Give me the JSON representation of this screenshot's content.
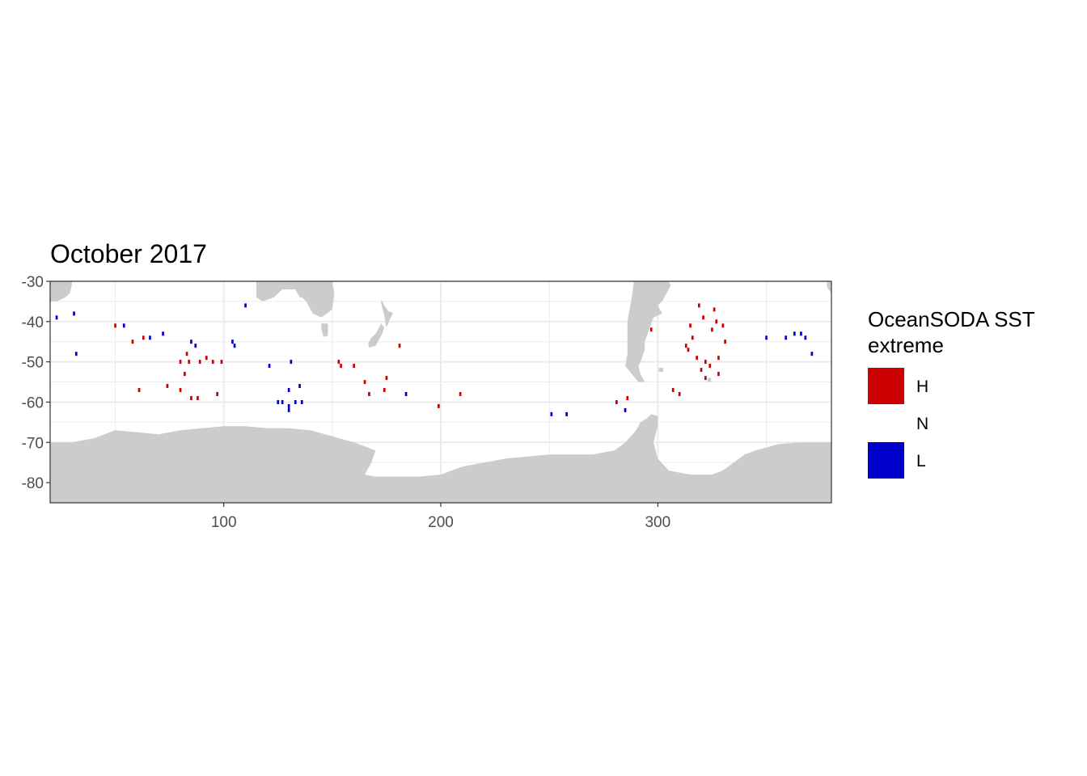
{
  "chart_data": {
    "type": "heatmap",
    "title": "October 2017",
    "xlabel": "",
    "ylabel": "",
    "xlim": [
      20,
      380
    ],
    "ylim": [
      -85,
      -30
    ],
    "x_ticks": [
      100,
      200,
      300
    ],
    "x_tick_labels": [
      "100",
      "200",
      "300"
    ],
    "y_ticks": [
      -30,
      -40,
      -50,
      -60,
      -70,
      -80
    ],
    "y_tick_labels": [
      "-30",
      "-40",
      "-50",
      "-60",
      "-70",
      "-80"
    ],
    "grid": true,
    "legend": {
      "title_lines": [
        "OceanSODA SST",
        "extreme"
      ],
      "placement": "right",
      "entries": [
        {
          "key": "H",
          "label": "H",
          "color": "#cc0000"
        },
        {
          "key": "N",
          "label": "N",
          "color": "#ffffff"
        },
        {
          "key": "L",
          "label": "L",
          "color": "#0000cc"
        }
      ]
    },
    "colors": {
      "land": "#cccccc",
      "panel": "#ffffff",
      "grid": "#ebebeb",
      "border": "#333333"
    },
    "cells": [
      {
        "lon": 23,
        "lat": -39,
        "cat": "L"
      },
      {
        "lon": 31,
        "lat": -38,
        "cat": "L"
      },
      {
        "lon": 32,
        "lat": -48,
        "cat": "L"
      },
      {
        "lon": 50,
        "lat": -41,
        "cat": "H"
      },
      {
        "lon": 54,
        "lat": -41,
        "cat": "L"
      },
      {
        "lon": 58,
        "lat": -45,
        "cat": "H"
      },
      {
        "lon": 63,
        "lat": -44,
        "cat": "H"
      },
      {
        "lon": 66,
        "lat": -44,
        "cat": "L"
      },
      {
        "lon": 72,
        "lat": -43,
        "cat": "L"
      },
      {
        "lon": 80,
        "lat": -50,
        "cat": "H"
      },
      {
        "lon": 83,
        "lat": -48,
        "cat": "H"
      },
      {
        "lon": 84,
        "lat": -50,
        "cat": "H"
      },
      {
        "lon": 85,
        "lat": -45,
        "cat": "L"
      },
      {
        "lon": 87,
        "lat": -46,
        "cat": "L"
      },
      {
        "lon": 89,
        "lat": -50,
        "cat": "H"
      },
      {
        "lon": 92,
        "lat": -49,
        "cat": "H"
      },
      {
        "lon": 95,
        "lat": -50,
        "cat": "H"
      },
      {
        "lon": 99,
        "lat": -50,
        "cat": "H"
      },
      {
        "lon": 82,
        "lat": -53,
        "cat": "H"
      },
      {
        "lon": 74,
        "lat": -56,
        "cat": "H"
      },
      {
        "lon": 61,
        "lat": -57,
        "cat": "H"
      },
      {
        "lon": 80,
        "lat": -57,
        "cat": "H"
      },
      {
        "lon": 85,
        "lat": -59,
        "cat": "H"
      },
      {
        "lon": 88,
        "lat": -59,
        "cat": "H"
      },
      {
        "lon": 97,
        "lat": -58,
        "cat": "H"
      },
      {
        "lon": 104,
        "lat": -45,
        "cat": "L"
      },
      {
        "lon": 105,
        "lat": -46,
        "cat": "L"
      },
      {
        "lon": 110,
        "lat": -36,
        "cat": "L"
      },
      {
        "lon": 121,
        "lat": -51,
        "cat": "L"
      },
      {
        "lon": 131,
        "lat": -50,
        "cat": "L"
      },
      {
        "lon": 125,
        "lat": -60,
        "cat": "L"
      },
      {
        "lon": 127,
        "lat": -60,
        "cat": "L"
      },
      {
        "lon": 130,
        "lat": -61,
        "cat": "L"
      },
      {
        "lon": 133,
        "lat": -60,
        "cat": "L"
      },
      {
        "lon": 136,
        "lat": -60,
        "cat": "L"
      },
      {
        "lon": 130,
        "lat": -57,
        "cat": "L"
      },
      {
        "lon": 135,
        "lat": -56,
        "cat": "L"
      },
      {
        "lon": 130,
        "lat": -62,
        "cat": "L"
      },
      {
        "lon": 153,
        "lat": -50,
        "cat": "H"
      },
      {
        "lon": 154,
        "lat": -51,
        "cat": "H"
      },
      {
        "lon": 160,
        "lat": -51,
        "cat": "H"
      },
      {
        "lon": 165,
        "lat": -55,
        "cat": "H"
      },
      {
        "lon": 167,
        "lat": -58,
        "cat": "H"
      },
      {
        "lon": 175,
        "lat": -54,
        "cat": "H"
      },
      {
        "lon": 174,
        "lat": -57,
        "cat": "H"
      },
      {
        "lon": 181,
        "lat": -46,
        "cat": "H"
      },
      {
        "lon": 184,
        "lat": -58,
        "cat": "L"
      },
      {
        "lon": 199,
        "lat": -61,
        "cat": "H"
      },
      {
        "lon": 209,
        "lat": -58,
        "cat": "H"
      },
      {
        "lon": 251,
        "lat": -63,
        "cat": "L"
      },
      {
        "lon": 258,
        "lat": -63,
        "cat": "L"
      },
      {
        "lon": 281,
        "lat": -60,
        "cat": "H"
      },
      {
        "lon": 286,
        "lat": -59,
        "cat": "H"
      },
      {
        "lon": 285,
        "lat": -62,
        "cat": "L"
      },
      {
        "lon": 297,
        "lat": -42,
        "cat": "H"
      },
      {
        "lon": 307,
        "lat": -57,
        "cat": "H"
      },
      {
        "lon": 310,
        "lat": -58,
        "cat": "H"
      },
      {
        "lon": 313,
        "lat": -46,
        "cat": "H"
      },
      {
        "lon": 314,
        "lat": -47,
        "cat": "H"
      },
      {
        "lon": 316,
        "lat": -44,
        "cat": "H"
      },
      {
        "lon": 315,
        "lat": -41,
        "cat": "H"
      },
      {
        "lon": 318,
        "lat": -49,
        "cat": "H"
      },
      {
        "lon": 319,
        "lat": -36,
        "cat": "H"
      },
      {
        "lon": 321,
        "lat": -39,
        "cat": "H"
      },
      {
        "lon": 322,
        "lat": -50,
        "cat": "H"
      },
      {
        "lon": 320,
        "lat": -52,
        "cat": "H"
      },
      {
        "lon": 322,
        "lat": -54,
        "cat": "H"
      },
      {
        "lon": 324,
        "lat": -51,
        "cat": "H"
      },
      {
        "lon": 325,
        "lat": -42,
        "cat": "H"
      },
      {
        "lon": 326,
        "lat": -37,
        "cat": "H"
      },
      {
        "lon": 327,
        "lat": -40,
        "cat": "H"
      },
      {
        "lon": 328,
        "lat": -49,
        "cat": "H"
      },
      {
        "lon": 328,
        "lat": -53,
        "cat": "H"
      },
      {
        "lon": 330,
        "lat": -41,
        "cat": "H"
      },
      {
        "lon": 331,
        "lat": -45,
        "cat": "H"
      },
      {
        "lon": 350,
        "lat": -44,
        "cat": "L"
      },
      {
        "lon": 359,
        "lat": -44,
        "cat": "L"
      },
      {
        "lon": 363,
        "lat": -43,
        "cat": "L"
      },
      {
        "lon": 366,
        "lat": -43,
        "cat": "L"
      },
      {
        "lon": 368,
        "lat": -44,
        "cat": "L"
      },
      {
        "lon": 371,
        "lat": -48,
        "cat": "L"
      }
    ],
    "land": [
      {
        "name": "africa",
        "points": [
          [
            20,
            -30
          ],
          [
            30,
            -30
          ],
          [
            30,
            -31
          ],
          [
            29,
            -33
          ],
          [
            27,
            -34
          ],
          [
            23,
            -35
          ],
          [
            20,
            -35
          ]
        ]
      },
      {
        "name": "australia",
        "points": [
          [
            115,
            -30
          ],
          [
            150,
            -30
          ],
          [
            151,
            -33
          ],
          [
            150,
            -37
          ],
          [
            145,
            -39
          ],
          [
            141,
            -38
          ],
          [
            138,
            -35
          ],
          [
            136,
            -34
          ],
          [
            135,
            -34
          ],
          [
            133,
            -32
          ],
          [
            127,
            -32
          ],
          [
            123,
            -34
          ],
          [
            118,
            -35
          ],
          [
            115,
            -34
          ],
          [
            115,
            -30
          ]
        ]
      },
      {
        "name": "tasmania",
        "points": [
          [
            145,
            -40.5
          ],
          [
            148,
            -40.5
          ],
          [
            148,
            -43.5
          ],
          [
            146,
            -43.8
          ],
          [
            145,
            -42
          ]
        ]
      },
      {
        "name": "new-zealand-north",
        "points": [
          [
            172.5,
            -34.5
          ],
          [
            174,
            -36
          ],
          [
            176,
            -37.5
          ],
          [
            178,
            -37.8
          ],
          [
            176.5,
            -39.5
          ],
          [
            175,
            -41.5
          ],
          [
            174.5,
            -40.5
          ],
          [
            174,
            -38.5
          ],
          [
            172.5,
            -35.5
          ]
        ]
      },
      {
        "name": "new-zealand-south",
        "points": [
          [
            172.5,
            -40.5
          ],
          [
            174,
            -41.5
          ],
          [
            173,
            -43
          ],
          [
            171.5,
            -44.5
          ],
          [
            170,
            -46
          ],
          [
            167,
            -46.5
          ],
          [
            166.5,
            -45.5
          ],
          [
            168,
            -44
          ],
          [
            170,
            -43
          ],
          [
            172,
            -41
          ]
        ]
      },
      {
        "name": "south-america",
        "points": [
          [
            289,
            -30
          ],
          [
            305,
            -30
          ],
          [
            306,
            -31
          ],
          [
            303,
            -34
          ],
          [
            302,
            -35
          ],
          [
            300,
            -36
          ],
          [
            302,
            -38
          ],
          [
            298,
            -39
          ],
          [
            296,
            -42
          ],
          [
            294,
            -45
          ],
          [
            294,
            -47
          ],
          [
            292,
            -50
          ],
          [
            291,
            -51
          ],
          [
            292,
            -53
          ],
          [
            294,
            -55
          ],
          [
            291,
            -55
          ],
          [
            288,
            -53
          ],
          [
            285,
            -51
          ],
          [
            286,
            -48
          ],
          [
            286,
            -44
          ],
          [
            286,
            -40
          ],
          [
            287,
            -37
          ],
          [
            288,
            -34
          ],
          [
            289,
            -30
          ]
        ]
      },
      {
        "name": "falklands",
        "points": [
          [
            300.5,
            -51.5
          ],
          [
            302.5,
            -51.5
          ],
          [
            302.5,
            -52.5
          ],
          [
            300.5,
            -52.5
          ]
        ]
      },
      {
        "name": "south-georgia",
        "points": [
          [
            323,
            -54
          ],
          [
            324.5,
            -54
          ],
          [
            324.5,
            -55
          ],
          [
            323,
            -55
          ]
        ]
      },
      {
        "name": "africa-east-edge",
        "points": [
          [
            378,
            -30
          ],
          [
            380,
            -30
          ],
          [
            380,
            -33
          ],
          [
            378,
            -31.5
          ]
        ]
      },
      {
        "name": "antarctica",
        "points": [
          [
            20,
            -70
          ],
          [
            30,
            -70
          ],
          [
            35,
            -69.5
          ],
          [
            40,
            -69
          ],
          [
            50,
            -67
          ],
          [
            60,
            -67.5
          ],
          [
            70,
            -68
          ],
          [
            80,
            -67
          ],
          [
            90,
            -66.5
          ],
          [
            100,
            -66
          ],
          [
            110,
            -66
          ],
          [
            120,
            -66.5
          ],
          [
            130,
            -66.5
          ],
          [
            140,
            -67
          ],
          [
            150,
            -68.5
          ],
          [
            160,
            -70
          ],
          [
            165,
            -71
          ],
          [
            170,
            -72
          ],
          [
            168,
            -75
          ],
          [
            165,
            -78
          ],
          [
            170,
            -78.5
          ],
          [
            180,
            -78.5
          ],
          [
            190,
            -78.5
          ],
          [
            200,
            -78
          ],
          [
            205,
            -77
          ],
          [
            210,
            -76
          ],
          [
            220,
            -75
          ],
          [
            230,
            -74
          ],
          [
            240,
            -73.5
          ],
          [
            250,
            -73
          ],
          [
            260,
            -73
          ],
          [
            270,
            -73
          ],
          [
            280,
            -72
          ],
          [
            285,
            -70
          ],
          [
            290,
            -67
          ],
          [
            292,
            -65
          ],
          [
            295,
            -64
          ],
          [
            297,
            -63
          ],
          [
            300,
            -63.5
          ],
          [
            300,
            -66
          ],
          [
            298,
            -70
          ],
          [
            300,
            -74
          ],
          [
            305,
            -77
          ],
          [
            315,
            -78
          ],
          [
            325,
            -78
          ],
          [
            330,
            -77
          ],
          [
            335,
            -75
          ],
          [
            340,
            -73
          ],
          [
            345,
            -72
          ],
          [
            355,
            -70.5
          ],
          [
            365,
            -70
          ],
          [
            375,
            -70
          ],
          [
            380,
            -70
          ],
          [
            380,
            -85
          ],
          [
            20,
            -85
          ]
        ]
      }
    ]
  }
}
